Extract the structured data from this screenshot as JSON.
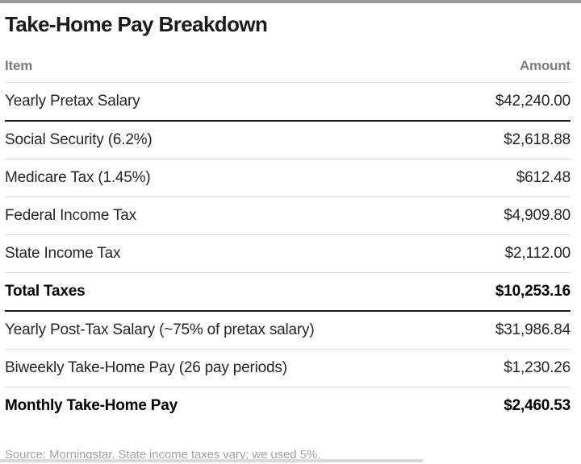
{
  "page": {
    "title": "Take-Home Pay Breakdown",
    "source_note": "Source: Morningstar. State income taxes vary; we used 5%."
  },
  "colors": {
    "top_bar": "#9a9a9a",
    "title_text": "#1a1a1a",
    "header_text": "#7d7d7d",
    "row_text": "#262626",
    "bold_row_text": "#000000",
    "thin_divider": "#dcdcdc",
    "thick_divider": "#1a1a1a",
    "source_text": "#a3a3a3",
    "bottom_bar": "#d9d9d9"
  },
  "table": {
    "columns": {
      "item": "Item",
      "amount": "Amount"
    },
    "rows": [
      {
        "item": "Yearly Pretax Salary",
        "amount": "$42,240.00",
        "bold": false,
        "divider_after": "thick"
      },
      {
        "item": "Social Security (6.2%)",
        "amount": "$2,618.88",
        "bold": false,
        "divider_after": "thin"
      },
      {
        "item": "Medicare Tax (1.45%)",
        "amount": "$612.48",
        "bold": false,
        "divider_after": "thin"
      },
      {
        "item": "Federal Income Tax",
        "amount": "$4,909.80",
        "bold": false,
        "divider_after": "thin"
      },
      {
        "item": "State Income Tax",
        "amount": "$2,112.00",
        "bold": false,
        "divider_after": "thin"
      },
      {
        "item": "Total Taxes",
        "amount": "$10,253.16",
        "bold": true,
        "divider_after": "thick"
      },
      {
        "item": "Yearly Post-Tax Salary (~75% of pretax salary)",
        "amount": "$31,986.84",
        "bold": false,
        "divider_after": "thin"
      },
      {
        "item": "Biweekly Take-Home Pay (26 pay periods)",
        "amount": "$1,230.26",
        "bold": false,
        "divider_after": "thin"
      },
      {
        "item": "Monthly Take-Home Pay",
        "amount": "$2,460.53",
        "bold": true,
        "divider_after": "none"
      }
    ]
  },
  "chart_data": {
    "type": "table",
    "title": "Take-Home Pay Breakdown",
    "columns": [
      "Item",
      "Amount"
    ],
    "rows": [
      [
        "Yearly Pretax Salary",
        42240.0
      ],
      [
        "Social Security (6.2%)",
        2618.88
      ],
      [
        "Medicare Tax (1.45%)",
        612.48
      ],
      [
        "Federal Income Tax",
        4909.8
      ],
      [
        "State Income Tax",
        2112.0
      ],
      [
        "Total Taxes",
        10253.16
      ],
      [
        "Yearly Post-Tax Salary (~75% of pretax salary)",
        31986.84
      ],
      [
        "Biweekly Take-Home Pay (26 pay periods)",
        1230.26
      ],
      [
        "Monthly Take-Home Pay",
        2460.53
      ]
    ],
    "annotations": [
      "Source: Morningstar. State income taxes vary; we used 5%."
    ]
  }
}
